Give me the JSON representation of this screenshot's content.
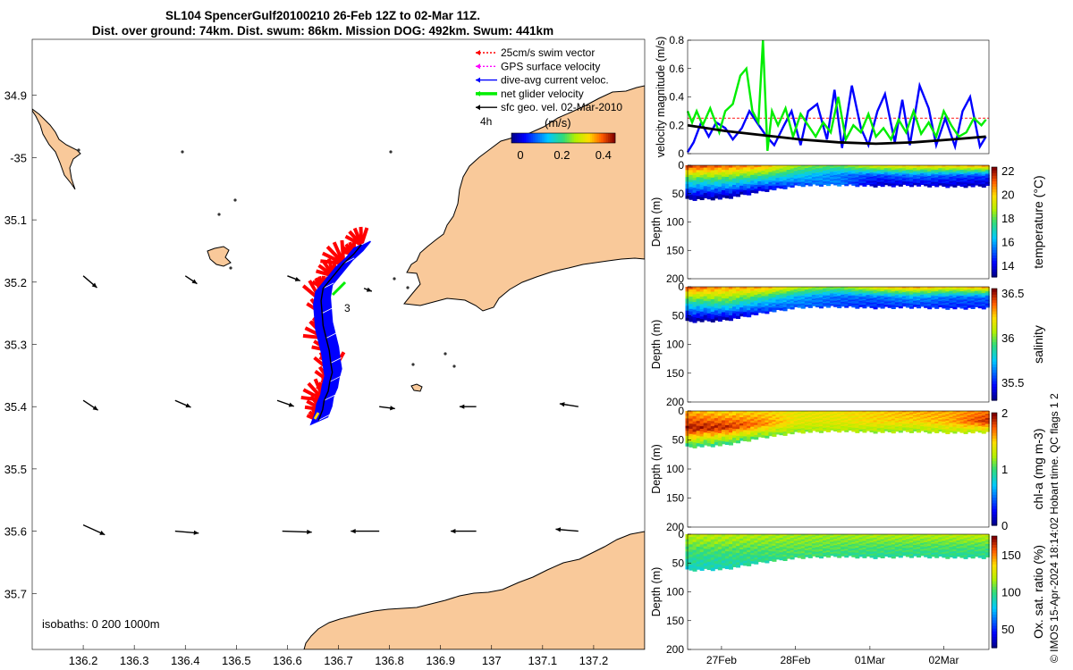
{
  "header": {
    "title_line1": "SL104 SpencerGulf20100210 26-Feb 12Z to 02-Mar 11Z.",
    "title_line2": "Dist. over ground: 74km. Dist. swum: 86km. Mission DOG: 492km. Swum: 441km"
  },
  "credit": "© IMOS 15-Apr-2024 18:14:02 Hobart time. QC flags 1  2",
  "colors": {
    "land": "#f9c99a",
    "swim": "#ff0000",
    "gps": "#ff00ff",
    "current": "#0000ff",
    "net": "#00ee00",
    "geo": "#000000",
    "ref_line": "#ff3333"
  },
  "chart_data": [
    {
      "type": "map",
      "name": "track_map",
      "xlabel": "",
      "ylabel": "",
      "xlim": [
        136.1,
        137.3
      ],
      "ylim": [
        -35.79,
        -34.81
      ],
      "x_ticks": [
        136.2,
        136.3,
        136.4,
        136.5,
        136.6,
        136.7,
        136.8,
        136.9,
        137.0,
        137.1,
        137.2
      ],
      "x_tick_labels": [
        "136.2",
        "136.3",
        "136.4",
        "136.5",
        "136.6",
        "136.7",
        "136.8",
        "136.9",
        "137",
        "137.1",
        "137.2"
      ],
      "y_ticks": [
        -34.9,
        -35.0,
        -35.1,
        -35.2,
        -35.3,
        -35.4,
        -35.5,
        -35.6,
        -35.7
      ],
      "y_tick_labels": [
        "34.9",
        "-35",
        "35.1",
        "35.2",
        "35.3",
        "35.4",
        "35.5",
        "35.6",
        "35.7"
      ],
      "legend": [
        {
          "label": "25cm/s swim vector",
          "color": "#ff0000",
          "style": "dotted"
        },
        {
          "label": "GPS surface velocity",
          "color": "#ff00ff",
          "style": "dotted"
        },
        {
          "label": "dive-avg current veloc.",
          "color": "#0000ff",
          "style": "solid"
        },
        {
          "label": "net glider velocity",
          "color": "#00ee00",
          "style": "thick"
        },
        {
          "label": "sfc geo. vel. 02-Mar-2010",
          "color": "#000000",
          "style": "solid"
        }
      ],
      "scale_label": "4h",
      "colorbar": {
        "label": "(m/s)",
        "ticks": [
          "0",
          "0.2",
          "0.4"
        ],
        "range": [
          0,
          0.5
        ]
      },
      "isobaths_label": "isobaths: 0   200  1000m",
      "annotation": "3",
      "track": [
        [
          136.661,
          -35.422
        ],
        [
          136.669,
          -35.405
        ],
        [
          136.672,
          -35.39
        ],
        [
          136.68,
          -35.375
        ],
        [
          136.683,
          -35.36
        ],
        [
          136.688,
          -35.345
        ],
        [
          136.685,
          -35.33
        ],
        [
          136.682,
          -35.31
        ],
        [
          136.676,
          -35.29
        ],
        [
          136.67,
          -35.27
        ],
        [
          136.668,
          -35.25
        ],
        [
          136.666,
          -35.23
        ],
        [
          136.67,
          -35.21
        ],
        [
          136.69,
          -35.19
        ],
        [
          136.71,
          -35.17
        ],
        [
          136.73,
          -35.155
        ],
        [
          136.745,
          -35.14
        ]
      ],
      "geo_vectors": [
        {
          "lon": 136.2,
          "lat": -35.19,
          "u": 0.14,
          "v": -0.12
        },
        {
          "lon": 136.4,
          "lat": -35.19,
          "u": 0.12,
          "v": -0.08
        },
        {
          "lon": 136.6,
          "lat": -35.19,
          "u": 0.13,
          "v": -0.05
        },
        {
          "lon": 136.75,
          "lat": -35.21,
          "u": 0.08,
          "v": -0.03
        },
        {
          "lon": 136.2,
          "lat": -35.39,
          "u": 0.15,
          "v": -0.1
        },
        {
          "lon": 136.38,
          "lat": -35.39,
          "u": 0.16,
          "v": -0.07
        },
        {
          "lon": 136.58,
          "lat": -35.39,
          "u": 0.17,
          "v": -0.06
        },
        {
          "lon": 136.78,
          "lat": -35.4,
          "u": 0.16,
          "v": -0.02
        },
        {
          "lon": 136.97,
          "lat": -35.4,
          "u": -0.17,
          "v": 0.0
        },
        {
          "lon": 137.17,
          "lat": -35.4,
          "u": -0.19,
          "v": 0.03
        },
        {
          "lon": 136.2,
          "lat": -35.59,
          "u": 0.22,
          "v": -0.1
        },
        {
          "lon": 136.38,
          "lat": -35.6,
          "u": 0.24,
          "v": -0.02
        },
        {
          "lon": 136.59,
          "lat": -35.6,
          "u": 0.3,
          "v": -0.01
        },
        {
          "lon": 136.78,
          "lat": -35.6,
          "u": -0.29,
          "v": 0.0
        },
        {
          "lon": 136.97,
          "lat": -35.6,
          "u": -0.26,
          "v": 0.0
        },
        {
          "lon": 137.17,
          "lat": -35.6,
          "u": -0.23,
          "v": 0.02
        }
      ]
    },
    {
      "type": "line",
      "name": "velocity_timeseries",
      "ylabel": "velocity magnitude (m/s)",
      "ylim": [
        0,
        0.8
      ],
      "y_ticks": [
        0,
        0.2,
        0.4,
        0.6,
        0.8
      ],
      "y_tick_labels": [
        "0",
        "0.2",
        "0.4",
        "0.6",
        "0.8"
      ],
      "xlim": [
        0,
        4
      ],
      "reference_line": 0.25,
      "series": [
        {
          "name": "dive-avg current",
          "color": "#0000ff",
          "x": [
            0,
            0.08,
            0.18,
            0.28,
            0.38,
            0.5,
            0.6,
            0.72,
            0.82,
            0.92,
            1.05,
            1.15,
            1.28,
            1.38,
            1.5,
            1.6,
            1.72,
            1.85,
            1.95,
            2.05,
            2.18,
            2.3,
            2.4,
            2.52,
            2.62,
            2.75,
            2.85,
            2.95,
            3.08,
            3.2,
            3.3,
            3.42,
            3.55,
            3.65,
            3.75,
            3.88,
            3.96
          ],
          "y": [
            0.01,
            0.08,
            0.22,
            0.12,
            0.22,
            0.18,
            0.1,
            0.18,
            0.3,
            0.22,
            0.12,
            0.06,
            0.2,
            0.3,
            0.06,
            0.3,
            0.35,
            0.1,
            0.45,
            0.04,
            0.48,
            0.18,
            0.06,
            0.3,
            0.42,
            0.08,
            0.38,
            0.06,
            0.48,
            0.32,
            0.06,
            0.25,
            0.05,
            0.3,
            0.4,
            0.05,
            0.12
          ]
        },
        {
          "name": "net glider",
          "color": "#00ee00",
          "x": [
            0,
            0.06,
            0.12,
            0.2,
            0.3,
            0.42,
            0.5,
            0.6,
            0.7,
            0.78,
            0.86,
            0.94,
            1.0,
            1.06,
            1.12,
            1.2,
            1.3,
            1.4,
            1.5,
            1.6,
            1.7,
            1.8,
            1.9,
            2.0,
            2.1,
            2.2,
            2.3,
            2.4,
            2.5,
            2.6,
            2.7,
            2.8,
            2.9,
            3.0,
            3.1,
            3.2,
            3.3,
            3.4,
            3.5,
            3.6,
            3.7,
            3.8,
            3.9,
            3.96
          ],
          "y": [
            0.3,
            0.22,
            0.3,
            0.2,
            0.32,
            0.15,
            0.3,
            0.35,
            0.55,
            0.6,
            0.3,
            0.22,
            0.8,
            0.02,
            0.3,
            0.2,
            0.32,
            0.12,
            0.28,
            0.2,
            0.12,
            0.22,
            0.15,
            0.4,
            0.1,
            0.2,
            0.15,
            0.28,
            0.12,
            0.18,
            0.1,
            0.24,
            0.15,
            0.3,
            0.14,
            0.22,
            0.12,
            0.3,
            0.2,
            0.12,
            0.15,
            0.25,
            0.2,
            0.24
          ]
        },
        {
          "name": "sfc geo",
          "color": "#000000",
          "x": [
            0,
            0.5,
            1.0,
            1.5,
            2.0,
            2.5,
            3.0,
            3.5,
            3.96
          ],
          "y": [
            0.2,
            0.16,
            0.13,
            0.1,
            0.08,
            0.07,
            0.08,
            0.1,
            0.12
          ]
        }
      ]
    },
    {
      "type": "heatmap",
      "name": "temperature_section",
      "ylabel": "Depth (m)",
      "ylim": [
        0,
        200
      ],
      "y_ticks": [
        0,
        50,
        100,
        150,
        200
      ],
      "y_tick_labels": [
        "0",
        "50",
        "100",
        "150",
        "200"
      ],
      "colorbar_label": "temperature (°C)",
      "colorbar_range": [
        13,
        22.3
      ],
      "colorbar_ticks": [
        "14",
        "16",
        "18",
        "20",
        "22"
      ],
      "colorbar_tick_values": [
        14,
        16,
        18,
        20,
        22
      ],
      "x": [
        0,
        0.5,
        1.0,
        1.5,
        2.0,
        2.5,
        3.0,
        3.5,
        4.0
      ],
      "max_depth": [
        60,
        58,
        45,
        35,
        34,
        36,
        35,
        37,
        36
      ],
      "surface_value": [
        21.5,
        21,
        20.5,
        18.5,
        18,
        19.5,
        20,
        20,
        20.5
      ],
      "mid_value": [
        16.8,
        17,
        17,
        16.5,
        15.5,
        14.8,
        15.5,
        15,
        14.8
      ],
      "deep_value": [
        13.3,
        13.3,
        13.8,
        15,
        15.5,
        13.6,
        13.8,
        13.6,
        13.5
      ]
    },
    {
      "type": "heatmap",
      "name": "salinity_section",
      "ylabel": "Depth (m)",
      "ylim": [
        0,
        200
      ],
      "y_ticks": [
        0,
        50,
        100,
        150,
        200
      ],
      "y_tick_labels": [
        "0",
        "50",
        "100",
        "150",
        "200"
      ],
      "colorbar_label": "salinity",
      "colorbar_range": [
        35.3,
        36.55
      ],
      "colorbar_ticks": [
        "35.5",
        "36",
        "36.5"
      ],
      "colorbar_tick_values": [
        35.5,
        36,
        36.5
      ],
      "x": [
        0,
        0.5,
        1.0,
        1.5,
        2.0,
        2.5,
        3.0,
        3.5,
        4.0
      ],
      "max_depth": [
        60,
        58,
        45,
        35,
        34,
        36,
        35,
        37,
        36
      ],
      "surface_value": [
        36.4,
        36.3,
        36.3,
        36.1,
        36.0,
        36.2,
        36.3,
        36.2,
        36.3
      ],
      "mid_value": [
        35.8,
        35.9,
        35.8,
        35.7,
        35.6,
        35.6,
        35.7,
        35.6,
        35.6
      ],
      "deep_value": [
        35.33,
        35.35,
        35.5,
        35.6,
        35.55,
        35.5,
        35.52,
        35.5,
        35.5
      ]
    },
    {
      "type": "heatmap",
      "name": "chla_section",
      "ylabel": "Depth (m)",
      "ylim": [
        0,
        200
      ],
      "y_ticks": [
        0,
        50,
        100,
        150,
        200
      ],
      "y_tick_labels": [
        "0",
        "50",
        "100",
        "150",
        "200"
      ],
      "colorbar_label": "chl-a (mg m-3)",
      "colorbar_range": [
        0,
        2
      ],
      "colorbar_ticks": [
        "0",
        "1",
        "2"
      ],
      "colorbar_tick_values": [
        0,
        1,
        2
      ],
      "x": [
        0,
        0.5,
        1.0,
        1.5,
        2.0,
        2.5,
        3.0,
        3.5,
        4.0
      ],
      "max_depth": [
        62,
        58,
        45,
        36,
        34,
        36,
        35,
        37,
        36
      ],
      "surface_value": [
        1.6,
        1.5,
        1.5,
        1.4,
        1.45,
        1.5,
        1.6,
        1.6,
        1.7
      ],
      "mid_value": [
        1.95,
        1.9,
        1.7,
        1.4,
        1.4,
        1.5,
        1.5,
        1.6,
        1.9
      ],
      "deep_value": [
        1.0,
        1.0,
        1.1,
        1.2,
        1.25,
        1.2,
        1.2,
        1.25,
        1.3
      ]
    },
    {
      "type": "heatmap",
      "name": "oxygen_section",
      "ylabel": "Depth (m)",
      "ylim": [
        0,
        200
      ],
      "y_ticks": [
        0,
        50,
        100,
        150,
        200
      ],
      "y_tick_labels": [
        "0",
        "50",
        "100",
        "150",
        "200"
      ],
      "colorbar_label": "Ox. sat. ratio (%)",
      "colorbar_range": [
        25,
        175
      ],
      "colorbar_ticks": [
        "50",
        "100",
        "150"
      ],
      "colorbar_tick_values": [
        50,
        100,
        150
      ],
      "x": [
        0,
        0.5,
        1.0,
        1.5,
        2.0,
        2.5,
        3.0,
        3.5,
        4.0
      ],
      "max_depth": [
        62,
        60,
        48,
        40,
        38,
        40,
        38,
        40,
        40
      ],
      "surface_value": [
        120,
        120,
        118,
        115,
        115,
        118,
        118,
        120,
        122
      ],
      "mid_value": [
        100,
        102,
        105,
        108,
        106,
        104,
        105,
        104,
        104
      ],
      "deep_value": [
        88,
        90,
        95,
        100,
        98,
        95,
        96,
        95,
        95
      ],
      "x_ticks": [
        0.45,
        1.43,
        2.42,
        3.4
      ],
      "x_tick_labels": [
        "27Feb",
        "28Feb",
        "01Mar",
        "02Mar"
      ]
    }
  ]
}
